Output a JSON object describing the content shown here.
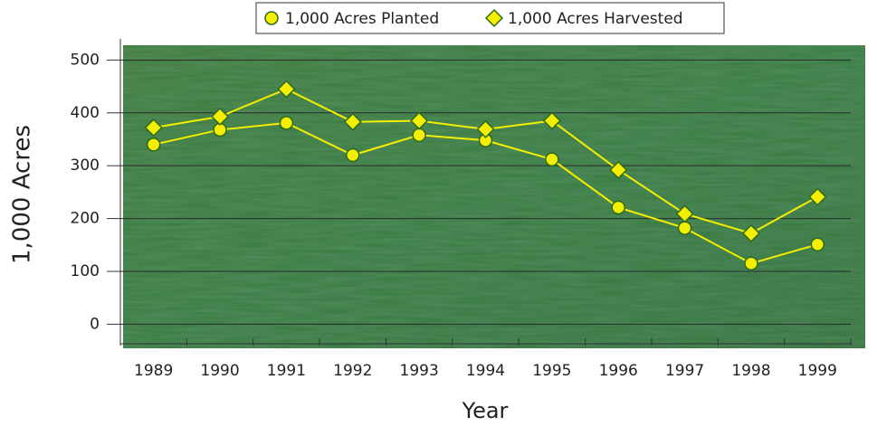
{
  "chart_data": {
    "type": "line",
    "categories": [
      "1989",
      "1990",
      "1991",
      "1992",
      "1993",
      "1994",
      "1995",
      "1996",
      "1997",
      "1998",
      "1999"
    ],
    "series": [
      {
        "name": "1,000 Acres Planted",
        "color": "#f4ef00",
        "marker": "circle",
        "values": [
          340,
          368,
          381,
          320,
          358,
          348,
          312,
          221,
          182,
          115,
          151
        ]
      },
      {
        "name": "1,000 Acres Harvested",
        "color": "#f4ef00",
        "marker": "diamond",
        "values": [
          372,
          393,
          445,
          383,
          385,
          369,
          385,
          292,
          209,
          172,
          241
        ]
      }
    ],
    "xlabel": "Year",
    "ylabel": "1,000 Acres",
    "ylim": [
      -37,
      540
    ],
    "yticks": [
      0,
      100,
      200,
      300,
      400,
      500
    ],
    "grid": true
  }
}
